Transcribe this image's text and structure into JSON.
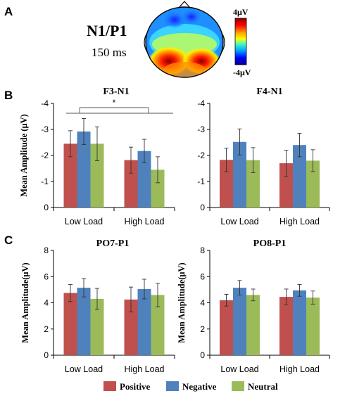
{
  "panels": {
    "a": "A",
    "b": "B",
    "c": "C"
  },
  "topomap": {
    "title": "N1/P1",
    "subtitle": "150 ms",
    "colorbar_max": "4μV",
    "colorbar_min": "-4μV"
  },
  "colors": {
    "Positive": "#c0504d",
    "Negative": "#4f81bd",
    "Neutral": "#9bbb59"
  },
  "legend": [
    "Positive",
    "Negative",
    "Neutral"
  ],
  "significance": "*",
  "chart_data": [
    {
      "type": "bar",
      "title": "F3-N1",
      "ylabel": "Mean Amplitude (μV)",
      "inverted_y": true,
      "ylim": [
        0,
        -4
      ],
      "yticks": [
        "0",
        "-1",
        "-2",
        "-3",
        "-4"
      ],
      "categories": [
        "Low Load",
        "High Load"
      ],
      "series": [
        {
          "name": "Positive",
          "values": [
            -2.45,
            -1.82
          ],
          "errors": [
            0.5,
            0.5
          ]
        },
        {
          "name": "Negative",
          "values": [
            -2.92,
            -2.17
          ],
          "errors": [
            0.5,
            0.45
          ]
        },
        {
          "name": "Neutral",
          "values": [
            -2.45,
            -1.45
          ],
          "errors": [
            0.65,
            0.5
          ]
        }
      ],
      "annotation": "*"
    },
    {
      "type": "bar",
      "title": "F4-N1",
      "ylabel": "",
      "inverted_y": true,
      "ylim": [
        0,
        -4
      ],
      "yticks": [
        "0",
        "-1",
        "-2",
        "-3",
        "-4"
      ],
      "categories": [
        "Low Load",
        "High Load"
      ],
      "series": [
        {
          "name": "Positive",
          "values": [
            -1.83,
            -1.7
          ],
          "errors": [
            0.45,
            0.5
          ]
        },
        {
          "name": "Negative",
          "values": [
            -2.52,
            -2.4
          ],
          "errors": [
            0.5,
            0.45
          ]
        },
        {
          "name": "Neutral",
          "values": [
            -1.82,
            -1.8
          ],
          "errors": [
            0.48,
            0.42
          ]
        }
      ]
    },
    {
      "type": "bar",
      "title": "PO7-P1",
      "ylabel": "Mean Amplitude(μV)",
      "ylim": [
        0,
        8
      ],
      "yticks": [
        "0",
        "2",
        "4",
        "6",
        "8"
      ],
      "categories": [
        "Low Load",
        "High Load"
      ],
      "series": [
        {
          "name": "Positive",
          "values": [
            4.75,
            4.25
          ],
          "errors": [
            0.65,
            0.95
          ]
        },
        {
          "name": "Negative",
          "values": [
            5.15,
            5.05
          ],
          "errors": [
            0.7,
            0.75
          ]
        },
        {
          "name": "Neutral",
          "values": [
            4.3,
            4.6
          ],
          "errors": [
            0.8,
            0.9
          ]
        }
      ]
    },
    {
      "type": "bar",
      "title": "PO8-P1",
      "ylabel": "Mean Amplitude(μV)",
      "ylim": [
        0,
        8
      ],
      "yticks": [
        "0",
        "2",
        "4",
        "6",
        "8"
      ],
      "categories": [
        "Low Load",
        "High Load"
      ],
      "series": [
        {
          "name": "Positive",
          "values": [
            4.2,
            4.45
          ],
          "errors": [
            0.45,
            0.6
          ]
        },
        {
          "name": "Negative",
          "values": [
            5.15,
            4.95
          ],
          "errors": [
            0.55,
            0.45
          ]
        },
        {
          "name": "Neutral",
          "values": [
            4.6,
            4.4
          ],
          "errors": [
            0.45,
            0.5
          ]
        }
      ]
    }
  ]
}
